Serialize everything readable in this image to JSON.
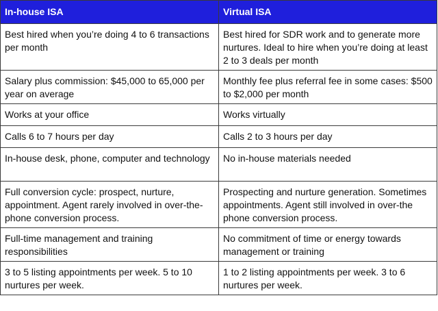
{
  "table": {
    "headers": [
      "In-house ISA",
      "Virtual ISA"
    ],
    "rows": [
      [
        "Best hired when you’re doing 4 to 6 transactions per month",
        "Best hired for SDR work and to generate more nurtures. Ideal to hire when you’re doing at least 2 to 3 deals per month"
      ],
      [
        "Salary plus commission: $45,000 to 65,000 per year on average",
        "Monthly fee plus referral fee in some cases: $500 to $2,000 per month"
      ],
      [
        "Works at your office",
        "Works virtually"
      ],
      [
        "Calls 6 to 7 hours per day",
        "Calls 2 to 3 hours per day"
      ],
      [
        "In-house desk, phone, computer and technology",
        "No in-house materials needed"
      ],
      [
        "Full conversion cycle: prospect, nurture, appointment. Agent rarely involved in over-the-phone conversion process.",
        "Prospecting and nurture generation. Sometimes appointments. Agent still involved in over-the phone conversion process."
      ],
      [
        "Full-time management and training responsibilities",
        "No commitment of time or energy towards management or training"
      ],
      [
        "3 to 5 listing appointments per week. 5 to 10 nurtures per week.",
        "1 to 2 listing appointments per week. 3 to 6 nurtures per week."
      ]
    ]
  },
  "colors": {
    "header_background": "#1f1fdc",
    "header_text": "#ffffff",
    "border": "#3a3a3a",
    "body_text": "#111111"
  }
}
